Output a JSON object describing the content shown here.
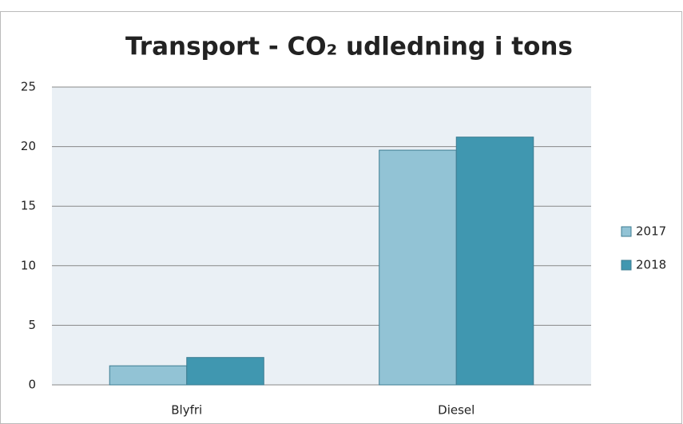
{
  "chart_data": {
    "type": "bar",
    "title": "Transport - CO₂ udledning i tons",
    "categories": [
      "Blyfri",
      "Diesel"
    ],
    "series": [
      {
        "name": "2017",
        "color": "#92c3d5",
        "values": [
          1.6,
          19.7
        ]
      },
      {
        "name": "2018",
        "color": "#4097b0",
        "values": [
          2.3,
          20.8
        ]
      }
    ],
    "ylim": [
      0,
      25
    ],
    "yticks": [
      0,
      5,
      10,
      15,
      20,
      25
    ],
    "grid": true,
    "legend": "right"
  }
}
